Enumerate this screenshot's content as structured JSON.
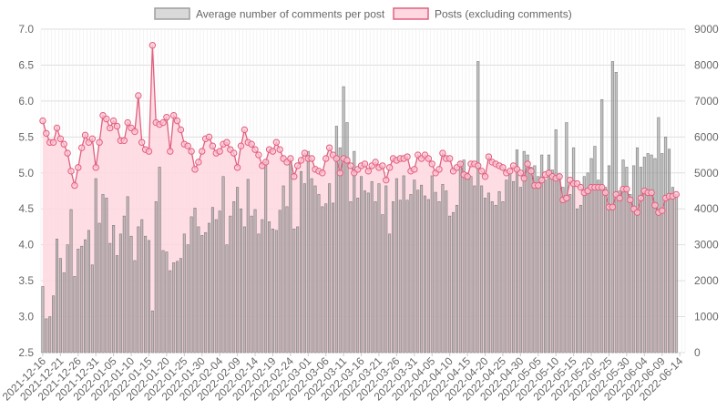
{
  "chart_data": {
    "type": "bar+line",
    "legend": {
      "placement": "top-center",
      "items": [
        {
          "label": "Average number of comments per post",
          "type": "bar",
          "fill": "#d9d9d9",
          "stroke": "#9e9e9e"
        },
        {
          "label": "Posts (excluding comments)",
          "type": "line",
          "fill": "#ffd7e0",
          "stroke": "#e0607e"
        }
      ]
    },
    "x": {
      "start_date": "2021-12-16",
      "n_days": 182,
      "tick_labels": [
        "2021-12-16",
        "2021-12-21",
        "2021-12-26",
        "2021-12-31",
        "2022-01-05",
        "2022-01-10",
        "2022-01-15",
        "2022-01-20",
        "2022-01-25",
        "2022-01-30",
        "2022-02-04",
        "2022-02-09",
        "2022-02-14",
        "2022-02-19",
        "2022-02-24",
        "2022-03-01",
        "2022-03-06",
        "2022-03-11",
        "2022-03-16",
        "2022-03-21",
        "2022-03-26",
        "2022-03-31",
        "2022-04-05",
        "2022-04-10",
        "2022-04-15",
        "2022-04-20",
        "2022-04-25",
        "2022-04-30",
        "2022-05-05",
        "2022-05-10",
        "2022-05-15",
        "2022-05-20",
        "2022-05-25",
        "2022-05-30",
        "2022-06-04",
        "2022-06-09",
        "2022-06-14"
      ]
    },
    "y_left": {
      "min": 2.5,
      "max": 7.0,
      "ticks": [
        "2.5",
        "3.0",
        "3.5",
        "4.0",
        "4.5",
        "5.0",
        "5.5",
        "6.0",
        "6.5",
        "7.0"
      ]
    },
    "y_right": {
      "min": 0,
      "max": 9000,
      "ticks": [
        "0",
        "1000",
        "2000",
        "3000",
        "4000",
        "5000",
        "6000",
        "7000",
        "8000",
        "9000"
      ]
    },
    "grid": true,
    "series": [
      {
        "name": "Average number of comments per post",
        "axis": "left",
        "values": [
          3.42,
          2.97,
          3.0,
          3.29,
          4.08,
          3.81,
          3.61,
          4.0,
          4.49,
          3.56,
          3.94,
          3.98,
          4.07,
          4.2,
          3.72,
          4.92,
          4.3,
          4.7,
          4.65,
          4.02,
          4.27,
          3.85,
          4.15,
          4.4,
          4.67,
          4.12,
          3.78,
          4.25,
          4.35,
          4.12,
          4.06,
          3.08,
          4.6,
          5.08,
          3.92,
          3.9,
          3.64,
          3.75,
          3.77,
          3.81,
          4.15,
          4.0,
          4.39,
          4.51,
          4.25,
          4.13,
          4.17,
          4.3,
          4.52,
          4.35,
          4.47,
          4.95,
          4.0,
          4.4,
          4.6,
          4.8,
          4.5,
          4.25,
          4.91,
          4.4,
          4.49,
          4.15,
          4.35,
          5.16,
          4.32,
          4.22,
          4.2,
          4.48,
          4.82,
          4.53,
          5.15,
          4.22,
          4.25,
          5.02,
          4.85,
          5.3,
          4.92,
          4.82,
          4.7,
          4.53,
          4.57,
          4.85,
          4.58,
          5.65,
          5.35,
          6.2,
          5.7,
          4.6,
          5.3,
          4.65,
          4.95,
          4.75,
          4.72,
          4.88,
          4.6,
          4.85,
          4.42,
          4.82,
          4.15,
          4.6,
          4.92,
          4.62,
          4.96,
          4.62,
          4.7,
          4.9,
          4.76,
          4.83,
          4.68,
          4.63,
          4.96,
          4.73,
          4.6,
          4.84,
          4.75,
          4.4,
          4.45,
          4.55,
          5.15,
          5.18,
          5.0,
          4.95,
          4.82,
          6.55,
          4.82,
          4.65,
          4.72,
          4.6,
          4.55,
          4.74,
          4.6,
          4.9,
          5.0,
          4.88,
          5.32,
          4.8,
          5.3,
          5.25,
          5.08,
          5.1,
          4.95,
          5.25,
          4.9,
          5.25,
          5.04,
          5.6,
          4.98,
          4.8,
          5.7,
          4.7,
          5.35,
          4.5,
          4.55,
          4.95,
          5.0,
          5.2,
          5.37,
          4.9,
          6.02,
          4.8,
          5.1,
          6.55,
          6.4,
          4.75,
          5.18,
          5.08,
          4.7,
          5.1,
          5.35,
          5.08,
          5.22,
          5.27,
          5.25,
          5.2,
          5.77,
          5.27,
          5.5,
          5.33,
          4.8,
          4.7
        ]
      },
      {
        "name": "Posts (excluding comments)",
        "axis": "right",
        "values": [
          6450,
          6100,
          5850,
          5850,
          6250,
          5950,
          5800,
          5550,
          5050,
          4650,
          5150,
          5700,
          6050,
          5850,
          5950,
          5150,
          5850,
          6600,
          6500,
          6250,
          6450,
          6300,
          5900,
          5900,
          6400,
          6250,
          6150,
          7150,
          5850,
          5650,
          5600,
          8550,
          6400,
          6350,
          6400,
          6550,
          5600,
          6600,
          6450,
          6200,
          5800,
          5750,
          5600,
          5100,
          5300,
          5600,
          5950,
          6000,
          5750,
          5550,
          5600,
          5800,
          5850,
          5650,
          5550,
          5150,
          5750,
          6200,
          5850,
          5800,
          5650,
          5500,
          5200,
          5300,
          5650,
          5600,
          5850,
          5650,
          5400,
          5300,
          5400,
          4900,
          5200,
          5350,
          5550,
          5400,
          5400,
          5100,
          5050,
          5000,
          5400,
          5700,
          5500,
          5400,
          5000,
          5400,
          5350,
          5200,
          5000,
          5100,
          5200,
          5250,
          5050,
          5200,
          5300,
          5150,
          5200,
          4800,
          5150,
          5400,
          5350,
          5400,
          5400,
          5450,
          5050,
          5100,
          5500,
          5400,
          5500,
          5400,
          5250,
          5000,
          5100,
          5550,
          5400,
          5400,
          5050,
          5150,
          5250,
          4950,
          4900,
          5250,
          5250,
          5200,
          5050,
          4900,
          5450,
          5300,
          5250,
          5200,
          5150,
          5000,
          5050,
          5200,
          5100,
          5000,
          4850,
          5250,
          5050,
          4650,
          4650,
          4800,
          4950,
          5000,
          4900,
          4850,
          4900,
          4250,
          4300,
          4800,
          4700,
          4700,
          4600,
          4450,
          4500,
          4600,
          4600,
          4600,
          4600,
          4450,
          4050,
          4050,
          4400,
          4300,
          4550,
          4550,
          4250,
          4000,
          3900,
          4300,
          4500,
          4450,
          4450,
          4100,
          3900,
          3950,
          4300,
          4350,
          4350,
          4400
        ]
      }
    ]
  }
}
